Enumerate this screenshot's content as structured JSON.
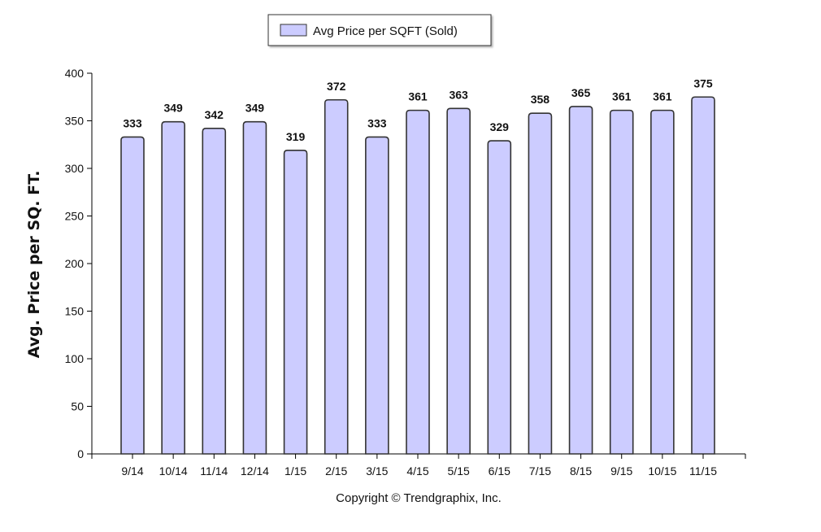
{
  "chart_data": {
    "type": "bar",
    "categories": [
      "9/14",
      "10/14",
      "11/14",
      "12/14",
      "1/15",
      "2/15",
      "3/15",
      "4/15",
      "5/15",
      "6/15",
      "7/15",
      "8/15",
      "9/15",
      "10/15",
      "11/15"
    ],
    "series": [
      {
        "name": "Avg Price per SQFT (Sold)",
        "values": [
          333,
          349,
          342,
          349,
          319,
          372,
          333,
          361,
          363,
          329,
          358,
          365,
          361,
          361,
          375
        ]
      }
    ],
    "ylabel": "Avg. Price per SQ. FT.",
    "ylim": [
      0,
      400
    ],
    "yticks": [
      0,
      50,
      100,
      150,
      200,
      250,
      300,
      350,
      400
    ],
    "legend_position": "top-center",
    "grid": false,
    "colors": {
      "bar_fill": "#ccccff",
      "bar_stroke": "#333333"
    }
  },
  "footer": {
    "copyright": "Copyright © Trendgraphix, Inc."
  }
}
